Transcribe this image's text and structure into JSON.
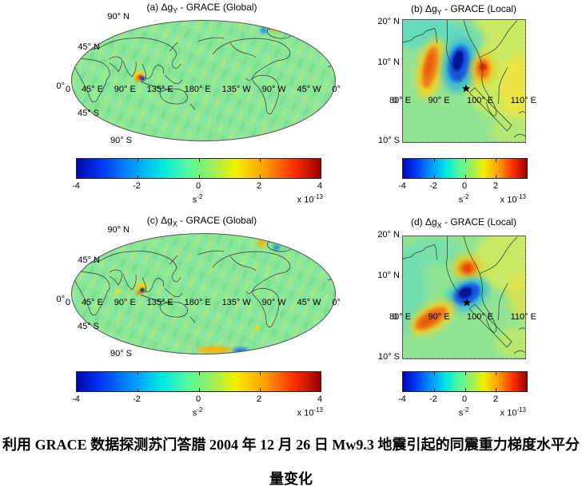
{
  "caption": {
    "line1": "利用 GRACE 数据探测苏门答腊 2004 年 12 月 26 日 Mw9.3 地震引起的同震重力梯度水平分",
    "line2": "量变化"
  },
  "colors": {
    "colormap": "jet",
    "map_base_green": "#8de697",
    "negative_core_blue": "#001699",
    "positive_core_red": "#d92b00"
  },
  "chart_data": [
    {
      "id": "a",
      "type": "heatmap",
      "region": "global",
      "projection": "robinson-like ellipse, pacific-centered",
      "title_prefix": "(a) Δg",
      "title_sub": "Y",
      "title_suffix": " - GRACE (Global)",
      "lat_ticks": [
        "90° N",
        "45° N",
        "0°",
        "45° S",
        "90° S"
      ],
      "lon_ticks": [
        "0",
        "45° E",
        "90° E",
        "135° E",
        "180° E",
        "135° W",
        "90° W",
        "45° W",
        "0°"
      ],
      "colorbar": {
        "ticks": [
          "-4",
          "-2",
          "0",
          "2",
          "4"
        ],
        "min": -4,
        "max": 4,
        "scale_factor": "1e-13",
        "unit_base": "s",
        "unit_exp": "-2",
        "scale_base": "x 10",
        "scale_exp": "-13",
        "colormap": "jet"
      },
      "anomalies": [
        {
          "sign": "mixed",
          "lon_e": 95,
          "lat_n": 3,
          "note": "compact coseismic anomaly at Sumatra"
        },
        {
          "sign": "mixed",
          "lon_e": 330,
          "lat_n": 62,
          "note": "small blue/yellow speck near Greenland"
        }
      ]
    },
    {
      "id": "b",
      "type": "heatmap",
      "region": "local",
      "projection": "lat 10S-20N, lon 80E-110E",
      "title_prefix": "(b) Δg",
      "title_sub": "Y",
      "title_suffix": " - GRACE (Local)",
      "lat_ticks": [
        "20° N",
        "10° N",
        "0",
        "10° S"
      ],
      "lon_ticks": [
        "80° E",
        "90° E",
        "100° E",
        "110° E"
      ],
      "colorbar": {
        "ticks": [
          "-4",
          "-2",
          "0",
          "2"
        ],
        "min": -4,
        "max": 4,
        "scale_factor": "1e-13",
        "unit_base": "s",
        "unit_exp": "-2",
        "scale_base": "x 10",
        "scale_exp": "-13",
        "colormap": "jet"
      },
      "epicenter_marker": {
        "symbol": "star",
        "lon_e": 95.9,
        "lat_n": 3.3
      },
      "anomalies": [
        {
          "sign": "positive",
          "lon_e": 86.5,
          "lat_n": 8,
          "note": "elongated NNW-SSE orange band"
        },
        {
          "sign": "negative",
          "lon_e": 93.5,
          "lat_n": 9,
          "note": "deep blue lobe"
        },
        {
          "sign": "positive",
          "lon_e": 100,
          "lat_n": 8.5,
          "note": "red-orange lobe over Malay peninsula"
        }
      ]
    },
    {
      "id": "c",
      "type": "heatmap",
      "region": "global",
      "projection": "robinson-like ellipse, pacific-centered",
      "title_prefix": "(c) Δg",
      "title_sub": "X",
      "title_suffix": " - GRACE (Global)",
      "lat_ticks": [
        "90° N",
        "45° N",
        "0°",
        "45° S",
        "90° S"
      ],
      "lon_ticks": [
        "0",
        "45° E",
        "90° E",
        "135° E",
        "180° E",
        "135° W",
        "90° W",
        "45° W",
        "0°"
      ],
      "colorbar": {
        "ticks": [
          "-4",
          "-2",
          "0",
          "2",
          "4"
        ],
        "min": -4,
        "max": 4,
        "scale_factor": "1e-13",
        "unit_base": "s",
        "unit_exp": "-2",
        "scale_base": "x 10",
        "scale_exp": "-13",
        "colormap": "jet"
      },
      "anomalies": [
        {
          "sign": "mixed",
          "lon_e": 96,
          "lat_n": 3,
          "note": "yellow halo with blue core at Sumatra"
        },
        {
          "sign": "mixed",
          "lon_e": 200,
          "lat_n": 78,
          "note": "orange/blue specks top right"
        }
      ]
    },
    {
      "id": "d",
      "type": "heatmap",
      "region": "local",
      "projection": "lat 10S-20N, lon 80E-110E",
      "title_prefix": "(d) Δg",
      "title_sub": "X",
      "title_suffix": " - GRACE (Local)",
      "lat_ticks": [
        "20° N",
        "10° N",
        "0",
        "10° S"
      ],
      "lon_ticks": [
        "80° E",
        "90° E",
        "100° E",
        "110° E"
      ],
      "colorbar": {
        "ticks": [
          "-4",
          "-2",
          "0",
          "2"
        ],
        "min": -4,
        "max": 4,
        "scale_factor": "1e-13",
        "unit_base": "s",
        "unit_exp": "-2",
        "scale_base": "x 10",
        "scale_exp": "-13",
        "colormap": "jet"
      },
      "epicenter_marker": {
        "symbol": "star",
        "lon_e": 95.9,
        "lat_n": 3.3
      },
      "anomalies": [
        {
          "sign": "positive",
          "lon_e": 96,
          "lat_n": 11.5,
          "note": "orange blob north of epicenter"
        },
        {
          "sign": "negative",
          "lon_e": 95.5,
          "lat_n": 5,
          "note": "deep blue lobe NW-SE"
        },
        {
          "sign": "positive",
          "lon_e": 88.5,
          "lat_n": 0,
          "note": "orange band SW of epicenter"
        }
      ]
    }
  ]
}
